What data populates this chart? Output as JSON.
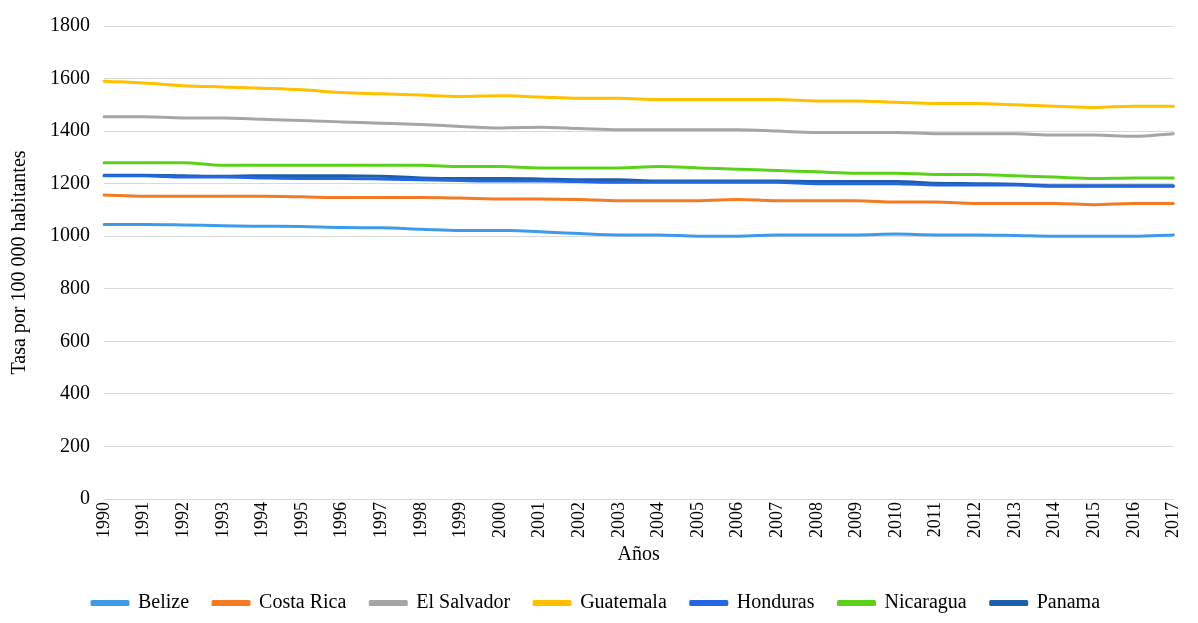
{
  "chart_data": {
    "type": "line",
    "xlabel": "Años",
    "ylabel": "Tasa por 100 000 habitantes",
    "categories": [
      "1990",
      "1991",
      "1992",
      "1993",
      "1994",
      "1995",
      "1996",
      "1997",
      "1998",
      "1999",
      "2000",
      "2001",
      "2002",
      "2003",
      "2004",
      "2005",
      "2006",
      "2007",
      "2008",
      "2009",
      "2010",
      "2011",
      "2012",
      "2013",
      "2014",
      "2015",
      "2016",
      "2017"
    ],
    "ylim": [
      0,
      1800
    ],
    "yticks": [
      0,
      200,
      400,
      600,
      800,
      1000,
      1200,
      1400,
      1600,
      1800
    ],
    "grid": "y",
    "legend": "bottom",
    "marker": "none",
    "line_style": "solid",
    "series": [
      {
        "name": "Belize",
        "color": "#3d9be9",
        "values": [
          1045,
          1045,
          1043,
          1040,
          1038,
          1037,
          1033,
          1032,
          1027,
          1022,
          1022,
          1017,
          1010,
          1005,
          1005,
          1000,
          1000,
          1005,
          1005,
          1005,
          1008,
          1005,
          1005,
          1003,
          1000,
          1000,
          1000,
          1005
        ]
      },
      {
        "name": "Costa Rica",
        "color": "#f47a24",
        "values": [
          1157,
          1152,
          1152,
          1152,
          1152,
          1150,
          1147,
          1147,
          1147,
          1145,
          1142,
          1142,
          1140,
          1135,
          1135,
          1135,
          1140,
          1135,
          1135,
          1135,
          1130,
          1130,
          1125,
          1125,
          1125,
          1120,
          1125,
          1125
        ]
      },
      {
        "name": "El Salvador",
        "color": "#a5a5a5",
        "values": [
          1455,
          1455,
          1450,
          1450,
          1445,
          1440,
          1435,
          1430,
          1425,
          1418,
          1412,
          1415,
          1410,
          1405,
          1405,
          1405,
          1405,
          1400,
          1395,
          1395,
          1395,
          1390,
          1390,
          1390,
          1385,
          1385,
          1380,
          1390
        ]
      },
      {
        "name": "Guatemala",
        "color": "#ffc000",
        "values": [
          1590,
          1583,
          1573,
          1568,
          1563,
          1557,
          1547,
          1542,
          1537,
          1532,
          1535,
          1530,
          1525,
          1525,
          1520,
          1520,
          1520,
          1520,
          1515,
          1515,
          1510,
          1505,
          1505,
          1500,
          1495,
          1490,
          1495,
          1495
        ]
      },
      {
        "name": "Honduras",
        "color": "#2366e0",
        "values": [
          1230,
          1230,
          1225,
          1225,
          1222,
          1220,
          1220,
          1218,
          1215,
          1212,
          1210,
          1210,
          1208,
          1205,
          1205,
          1205,
          1205,
          1205,
          1200,
          1200,
          1200,
          1195,
          1195,
          1195,
          1190,
          1190,
          1190,
          1190
        ]
      },
      {
        "name": "Nicaragua",
        "color": "#5bd219",
        "values": [
          1280,
          1280,
          1280,
          1270,
          1270,
          1270,
          1270,
          1270,
          1270,
          1265,
          1265,
          1260,
          1260,
          1260,
          1265,
          1260,
          1255,
          1250,
          1245,
          1240,
          1240,
          1235,
          1235,
          1230,
          1225,
          1220,
          1222,
          1222
        ]
      },
      {
        "name": "Panama",
        "color": "#1f5fa8",
        "values": [
          1232,
          1232,
          1230,
          1228,
          1230,
          1230,
          1230,
          1228,
          1222,
          1220,
          1220,
          1218,
          1215,
          1215,
          1210,
          1210,
          1210,
          1210,
          1208,
          1208,
          1208,
          1202,
          1200,
          1198,
          1192,
          1192,
          1192,
          1192
        ]
      }
    ]
  }
}
